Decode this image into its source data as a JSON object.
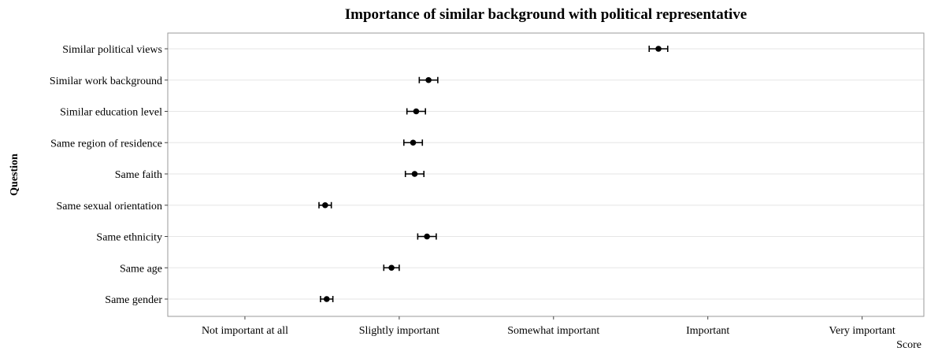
{
  "chart_data": {
    "type": "scatter",
    "title": "Importance of similar background with political representative",
    "xlabel": "Score",
    "ylabel": "Question",
    "x_tick_labels": [
      "Not important at all",
      "Slightly important",
      "Somewhat important",
      "Important",
      "Very important"
    ],
    "xlim": [
      0.5,
      5.4
    ],
    "grid": true,
    "legend": "none",
    "colors": {
      "point": "#000000",
      "grid": "#e6e6e6",
      "frame": "#9a9a9a"
    },
    "categories": [
      "Similar political views",
      "Similar work background",
      "Similar education level",
      "Same region of residence",
      "Same faith",
      "Same sexual orientation",
      "Same ethnicity",
      "Same age",
      "Same gender"
    ],
    "series": [
      {
        "values": [
          3.68,
          2.19,
          2.11,
          2.09,
          2.1,
          1.52,
          2.18,
          1.95,
          1.53
        ],
        "ci_low": [
          3.62,
          2.13,
          2.05,
          2.03,
          2.04,
          1.48,
          2.12,
          1.9,
          1.49
        ],
        "ci_high": [
          3.74,
          2.25,
          2.17,
          2.15,
          2.16,
          1.56,
          2.24,
          2.0,
          1.57
        ]
      }
    ]
  }
}
